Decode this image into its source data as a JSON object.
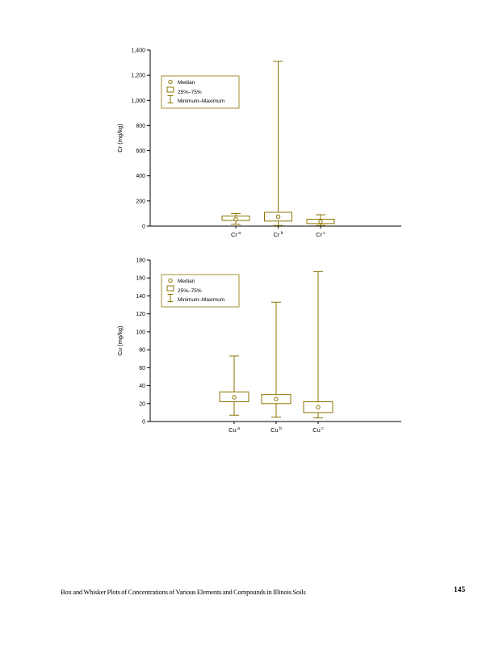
{
  "footer": {
    "title": "Box and Whisker Plots of Concentrations of Various Elements and Compounds in Illinois Soils",
    "page_number": "145"
  },
  "colors": {
    "plot": "#8c7300",
    "axis": "#000000",
    "text": "#000000"
  },
  "chart_data": [
    {
      "type": "box",
      "title": "",
      "ylabel": "Cr (mg/kg)",
      "xlabel": "",
      "ylim": [
        0,
        1400
      ],
      "yticks": [
        0,
        200,
        400,
        600,
        800,
        1000,
        1200,
        1400
      ],
      "ytick_labels": [
        "0",
        "200",
        "400",
        "600",
        "800",
        "1,000",
        "1,200",
        "1,400"
      ],
      "categories": [
        {
          "label": "Cr",
          "sup": "a"
        },
        {
          "label": "Cr",
          "sup": "b"
        },
        {
          "label": "Cr",
          "sup": "c"
        }
      ],
      "legend": [
        "Median",
        "25%–75%",
        "Minimum–Maximum"
      ],
      "legend_position": "upper-left",
      "grid": false,
      "series": [
        {
          "name": "Cr a",
          "min": 15,
          "q1": 45,
          "median": 55,
          "q3": 80,
          "max": 100
        },
        {
          "name": "Cr b",
          "min": 5,
          "q1": 40,
          "median": 75,
          "q3": 110,
          "max": 1310
        },
        {
          "name": "Cr c",
          "min": 5,
          "q1": 20,
          "median": 35,
          "q3": 55,
          "max": 90
        }
      ]
    },
    {
      "type": "box",
      "title": "",
      "ylabel": "Cu (mg/kg)",
      "xlabel": "",
      "ylim": [
        0,
        180
      ],
      "yticks": [
        0,
        20,
        40,
        60,
        80,
        100,
        120,
        140,
        160,
        180
      ],
      "ytick_labels": [
        "0",
        "20",
        "40",
        "60",
        "80",
        "100",
        "120",
        "140",
        "160",
        "180"
      ],
      "categories": [
        {
          "label": "Cu",
          "sup": "a"
        },
        {
          "label": "Cu",
          "sup": "b"
        },
        {
          "label": "Cu",
          "sup": "c"
        }
      ],
      "legend": [
        "Median",
        "25%–75%",
        "Minimum–Maximum"
      ],
      "legend_position": "upper-left",
      "grid": false,
      "series": [
        {
          "name": "Cu a",
          "min": 7,
          "q1": 22,
          "median": 27,
          "q3": 33,
          "max": 73
        },
        {
          "name": "Cu b",
          "min": 5,
          "q1": 20,
          "median": 25,
          "q3": 30,
          "max": 133
        },
        {
          "name": "Cu c",
          "min": 4,
          "q1": 10,
          "median": 16,
          "q3": 22,
          "max": 167
        }
      ]
    }
  ]
}
